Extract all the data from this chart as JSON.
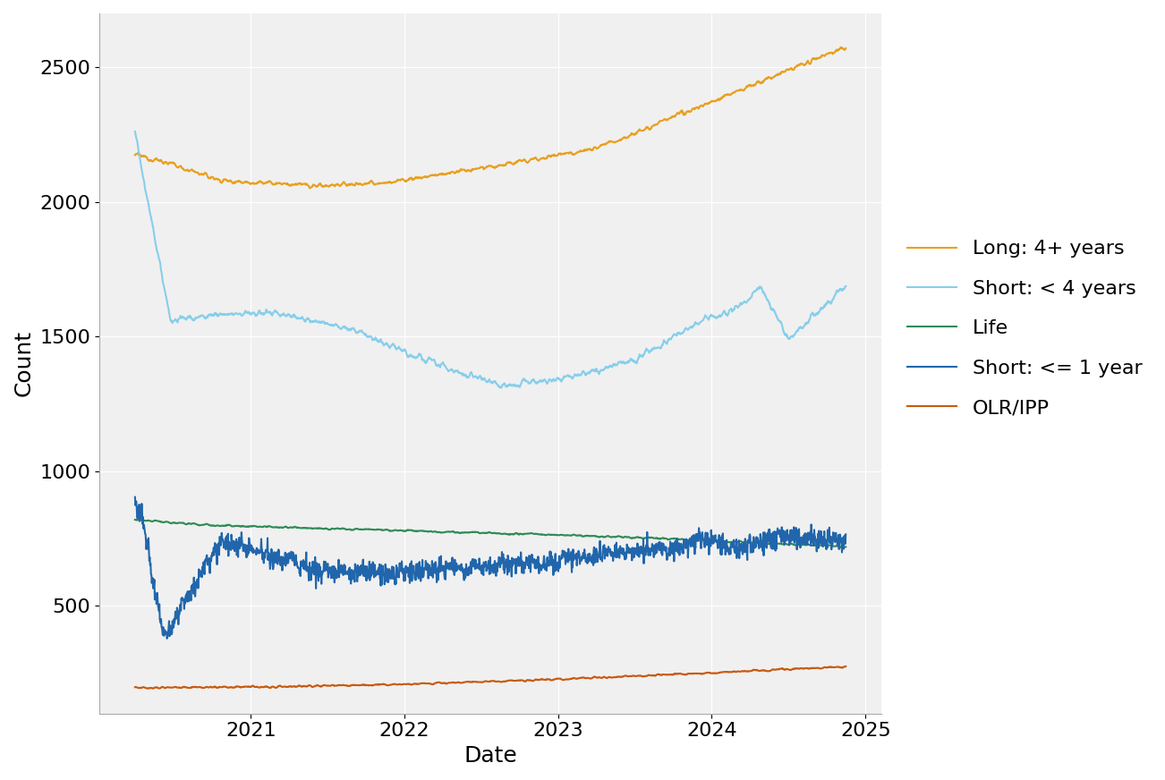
{
  "title": "",
  "xlabel": "Date",
  "ylabel": "Count",
  "background_color": "#ffffff",
  "plot_bg_color": "#f0f0f0",
  "grid_color": "#ffffff",
  "ylim": [
    100,
    2700
  ],
  "yticks": [
    500,
    1000,
    1500,
    2000,
    2500
  ],
  "series": {
    "long": {
      "label": "Long: 4+ years",
      "color": "#E8A020"
    },
    "short4": {
      "label": "Short: < 4 years",
      "color": "#87CEEB"
    },
    "life": {
      "label": "Life",
      "color": "#2E8B57"
    },
    "short1": {
      "label": "Short: <= 1 year",
      "color": "#2166AC"
    },
    "olr": {
      "label": "OLR/IPP",
      "color": "#C85A10"
    }
  },
  "legend_fontsize": 16,
  "axis_fontsize": 18,
  "tick_fontsize": 16,
  "line_width": 1.5
}
